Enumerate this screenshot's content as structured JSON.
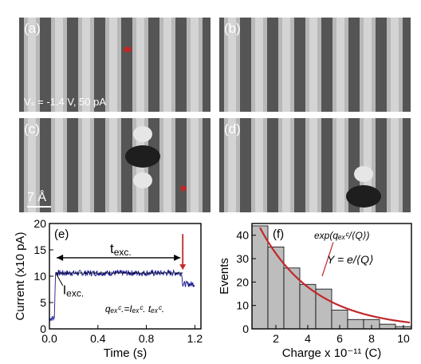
{
  "panels": {
    "a": {
      "label": "(a)",
      "condition": "Vₛ = -1.4 V, 50 pA"
    },
    "b": {
      "label": "(b)"
    },
    "c": {
      "label": "(c)",
      "scale": "7 Å"
    },
    "d": {
      "label": "(d)"
    }
  },
  "colors": {
    "accent_red": "#c0282a",
    "trace_blue": "#1a1a8c",
    "bar_gray": "#bdbdbd"
  },
  "chart_data": [
    {
      "type": "line",
      "label": "(e)",
      "xlabel": "Time (s)",
      "ylabel": "Current (x10 pA)",
      "xlim": [
        0,
        1.25
      ],
      "ylim": [
        0,
        20
      ],
      "xticks": [
        0.0,
        0.4,
        0.8,
        1.2
      ],
      "yticks": [
        0,
        5,
        10,
        15,
        20
      ],
      "annotations": {
        "t_exc": "t",
        "t_exc_sub": "exc.",
        "i_exc": "I",
        "i_exc_sub": "exc.",
        "q_formula": "qₑₓᶜ.=Iₑₓᶜ. tₑₓᶜ."
      },
      "x": [
        0.0,
        0.04,
        0.05,
        1.09,
        1.1,
        1.2
      ],
      "values": [
        2,
        2,
        10.6,
        10.6,
        8.5,
        8.5
      ]
    },
    {
      "type": "bar",
      "label": "(f)",
      "xlabel": "Charge x 10⁻¹¹ (C)",
      "ylabel": "Events",
      "xlim": [
        0.5,
        10.5
      ],
      "ylim": [
        0,
        45
      ],
      "xticks": [
        2,
        4,
        6,
        8,
        10
      ],
      "yticks": [
        0,
        10,
        20,
        30,
        40
      ],
      "categories": [
        1,
        2,
        3,
        4,
        5,
        6,
        7,
        8,
        9,
        10
      ],
      "values": [
        44,
        35,
        26,
        19,
        17,
        8,
        4,
        4,
        2,
        1
      ],
      "fit_label_1": "exp(qₑₓᶜ/⟨Q⟩)",
      "fit_label_2": "Y = e/⟨Q⟩",
      "fit": {
        "amplitude": 58,
        "decay": 3.4
      }
    }
  ]
}
